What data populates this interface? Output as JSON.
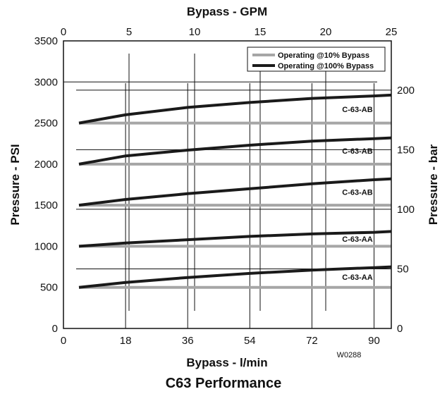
{
  "chart_data": {
    "type": "line",
    "title": "C63 Performance",
    "code": "W0288",
    "x_bottom": {
      "label": "Bypass - l/min",
      "range": [
        0,
        95
      ],
      "ticks": [
        0,
        18,
        36,
        54,
        72,
        90
      ]
    },
    "x_top": {
      "label": "Bypass - GPM",
      "range": [
        0,
        25
      ],
      "ticks": [
        0,
        5,
        10,
        15,
        20,
        25
      ]
    },
    "y_left": {
      "label": "Pressure - PSI",
      "range": [
        0,
        3500
      ],
      "ticks": [
        0,
        500,
        1000,
        1500,
        2000,
        2500,
        3000,
        3500
      ]
    },
    "y_right": {
      "label": "Pressure - bar",
      "range": [
        0,
        241.3
      ],
      "ticks": [
        0,
        50,
        100,
        150,
        200
      ]
    },
    "legend": {
      "position": "top-right",
      "items": [
        {
          "label": "Operating @10% Bypass",
          "color": "#a6a6a6"
        },
        {
          "label": "Operating @100% Bypass",
          "color": "#1a1a1a"
        }
      ]
    },
    "series": [
      {
        "label": "C-63-AB",
        "setting_psi": 2500,
        "x": [
          4.5,
          18,
          36,
          54,
          72,
          90,
          95
        ],
        "y": [
          2500,
          2600,
          2690,
          2750,
          2800,
          2830,
          2840
        ]
      },
      {
        "label": "C-63-AB",
        "setting_psi": 2000,
        "x": [
          4.5,
          18,
          36,
          54,
          72,
          90,
          95
        ],
        "y": [
          2000,
          2100,
          2170,
          2230,
          2280,
          2310,
          2320
        ]
      },
      {
        "label": "C-63-AB",
        "setting_psi": 1500,
        "x": [
          4.5,
          18,
          36,
          54,
          72,
          90,
          95
        ],
        "y": [
          1500,
          1570,
          1640,
          1700,
          1760,
          1810,
          1820
        ]
      },
      {
        "label": "C-63-AA",
        "setting_psi": 1000,
        "x": [
          4.5,
          18,
          36,
          54,
          72,
          90,
          95
        ],
        "y": [
          1000,
          1040,
          1080,
          1120,
          1150,
          1170,
          1180
        ]
      },
      {
        "label": "C-63-AA",
        "setting_psi": 500,
        "x": [
          4.5,
          18,
          36,
          54,
          72,
          90,
          95
        ],
        "y": [
          500,
          560,
          620,
          670,
          710,
          740,
          750
        ]
      }
    ]
  }
}
